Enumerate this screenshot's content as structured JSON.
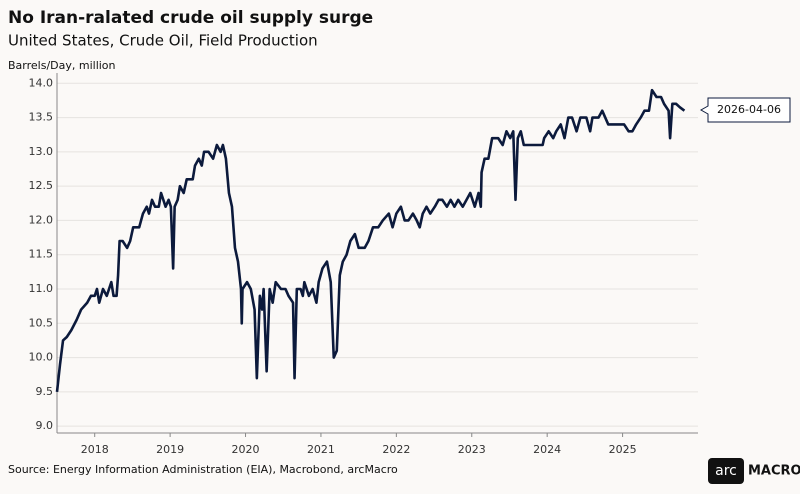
{
  "chart_data": {
    "type": "line",
    "title": "No Iran-ralated crude oil supply surge",
    "subtitle": "United States, Crude Oil, Field Production",
    "y_label": "Barrels/Day, million",
    "source": "Source: Energy Information Administration (EIA), Macrobond, arcMacro",
    "annotation": "2026-04-06",
    "logo": {
      "left": "arc",
      "right": "MACRO"
    },
    "xlim": [
      2018,
      2026.5
    ],
    "xticks": [
      {
        "value": 2018.5,
        "label": "2018"
      },
      {
        "value": 2019.5,
        "label": "2019"
      },
      {
        "value": 2020.5,
        "label": "2020"
      },
      {
        "value": 2021.5,
        "label": "2021"
      },
      {
        "value": 2022.5,
        "label": "2022"
      },
      {
        "value": 2023.5,
        "label": "2023"
      },
      {
        "value": 2024.5,
        "label": "2024"
      },
      {
        "value": 2025.5,
        "label": "2025"
      }
    ],
    "ylim": [
      8.9,
      14.15
    ],
    "yticks": [
      {
        "value": 9,
        "label": "9.0"
      },
      9.5,
      {
        "value": 10,
        "label": "10.0"
      },
      10.5,
      {
        "value": 11,
        "label": "11.0"
      },
      11.5,
      {
        "value": 12,
        "label": "12.0"
      },
      12.5,
      {
        "value": 13,
        "label": "13.0"
      },
      13.5,
      {
        "value": 14,
        "label": "14.0"
      }
    ],
    "grid": true,
    "x": [
      2018.0,
      2018.04,
      2018.08,
      2018.13,
      2018.19,
      2018.26,
      2018.32,
      2018.4,
      2018.45,
      2018.5,
      2018.53,
      2018.56,
      2018.61,
      2018.66,
      2018.72,
      2018.75,
      2018.79,
      2018.81,
      2018.83,
      2018.87,
      2018.93,
      2018.97,
      2019.01,
      2019.09,
      2019.14,
      2019.19,
      2019.22,
      2019.26,
      2019.3,
      2019.35,
      2019.38,
      2019.44,
      2019.48,
      2019.51,
      2019.54,
      2019.56,
      2019.6,
      2019.63,
      2019.68,
      2019.72,
      2019.8,
      2019.83,
      2019.88,
      2019.92,
      2019.95,
      2020.01,
      2020.07,
      2020.12,
      2020.17,
      2020.2,
      2020.24,
      2020.28,
      2020.32,
      2020.36,
      2020.4,
      2020.44,
      2020.45,
      2020.46,
      2020.52,
      2020.57,
      2020.62,
      2020.65,
      2020.69,
      2020.72,
      2020.74,
      2020.78,
      2020.82,
      2020.86,
      2020.9,
      2020.97,
      2021.03,
      2021.07,
      2021.13,
      2021.15,
      2021.18,
      2021.23,
      2021.26,
      2021.28,
      2021.34,
      2021.39,
      2021.44,
      2021.47,
      2021.52,
      2021.58,
      2021.63,
      2021.67,
      2021.71,
      2021.75,
      2021.79,
      2021.84,
      2021.89,
      2021.95,
      2022.0,
      2022.08,
      2022.13,
      2022.19,
      2022.26,
      2022.32,
      2022.4,
      2022.45,
      2022.5,
      2022.56,
      2022.61,
      2022.66,
      2022.72,
      2022.77,
      2022.81,
      2022.85,
      2022.9,
      2022.95,
      2023.01,
      2023.06,
      2023.11,
      2023.17,
      2023.22,
      2023.27,
      2023.32,
      2023.38,
      2023.43,
      2023.48,
      2023.54,
      2023.59,
      2023.62,
      2023.63,
      2023.67,
      2023.72,
      2023.77,
      2023.85,
      2023.91,
      2023.96,
      2024.01,
      2024.05,
      2024.08,
      2024.11,
      2024.15,
      2024.19,
      2024.25,
      2024.33,
      2024.44,
      2024.46,
      2024.52,
      2024.58,
      2024.62,
      2024.68,
      2024.73,
      2024.78,
      2024.83,
      2024.89,
      2024.94,
      2025.02,
      2025.07,
      2025.1,
      2025.18,
      2025.23,
      2025.31,
      2025.39,
      2025.46,
      2025.52,
      2025.58,
      2025.63,
      2025.68,
      2025.74,
      2025.79,
      2025.85,
      2025.89,
      2025.95,
      2026.01,
      2026.05,
      2026.11,
      2026.13,
      2026.16,
      2026.21,
      2026.26,
      2026.32
    ],
    "series": [
      {
        "color": "#0c1a3c",
        "values": [
          9.5,
          9.9,
          10.25,
          10.3,
          10.4,
          10.55,
          10.7,
          10.8,
          10.9,
          10.9,
          11.0,
          10.8,
          11.0,
          10.9,
          11.1,
          10.9,
          10.9,
          11.2,
          11.7,
          11.7,
          11.6,
          11.7,
          11.9,
          11.9,
          12.1,
          12.2,
          12.1,
          12.3,
          12.2,
          12.2,
          12.4,
          12.2,
          12.3,
          12.2,
          11.3,
          12.2,
          12.3,
          12.5,
          12.4,
          12.6,
          12.6,
          12.8,
          12.9,
          12.8,
          13.0,
          13.0,
          12.9,
          13.1,
          13.0,
          13.1,
          12.9,
          12.4,
          12.2,
          11.6,
          11.4,
          11.0,
          10.5,
          11.0,
          11.1,
          11.0,
          10.7,
          9.7,
          10.9,
          10.7,
          11.0,
          9.8,
          11.0,
          10.8,
          11.1,
          11.0,
          11.0,
          10.9,
          10.8,
          9.7,
          11.0,
          11.0,
          10.9,
          11.1,
          10.9,
          11.0,
          10.8,
          11.1,
          11.3,
          11.4,
          11.1,
          10.0,
          10.1,
          11.2,
          11.4,
          11.5,
          11.7,
          11.8,
          11.6,
          11.6,
          11.7,
          11.9,
          11.9,
          12.0,
          12.1,
          11.9,
          12.1,
          12.2,
          12.0,
          12.0,
          12.1,
          12.0,
          11.9,
          12.1,
          12.2,
          12.1,
          12.2,
          12.3,
          12.3,
          12.2,
          12.3,
          12.2,
          12.3,
          12.2,
          12.3,
          12.4,
          12.2,
          12.4,
          12.2,
          12.7,
          12.9,
          12.9,
          13.2,
          13.2,
          13.1,
          13.3,
          13.2,
          13.3,
          12.3,
          13.2,
          13.3,
          13.1,
          13.1,
          13.1,
          13.1,
          13.2,
          13.3,
          13.2,
          13.3,
          13.4,
          13.2,
          13.5,
          13.5,
          13.3,
          13.5,
          13.5,
          13.3,
          13.5,
          13.5,
          13.6,
          13.4,
          13.4,
          13.4,
          13.4,
          13.3,
          13.3,
          13.4,
          13.5,
          13.6,
          13.6,
          13.9,
          13.8,
          13.8,
          13.7,
          13.6,
          13.2,
          13.7,
          13.7,
          13.65,
          13.6
        ]
      }
    ]
  }
}
